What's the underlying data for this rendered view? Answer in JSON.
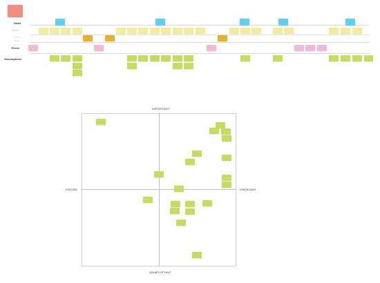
{
  "board": {
    "journey_map": {
      "rows": {
        "head": "Head",
        "event": "Event",
        "assumptions": "Assumptions"
      }
    },
    "matrix": {
      "top_label": "IMPORTANT",
      "bottom_label": "UNIMPORTANT",
      "left_label": "KNOWN",
      "right_label": "UNKNOWN"
    }
  }
}
